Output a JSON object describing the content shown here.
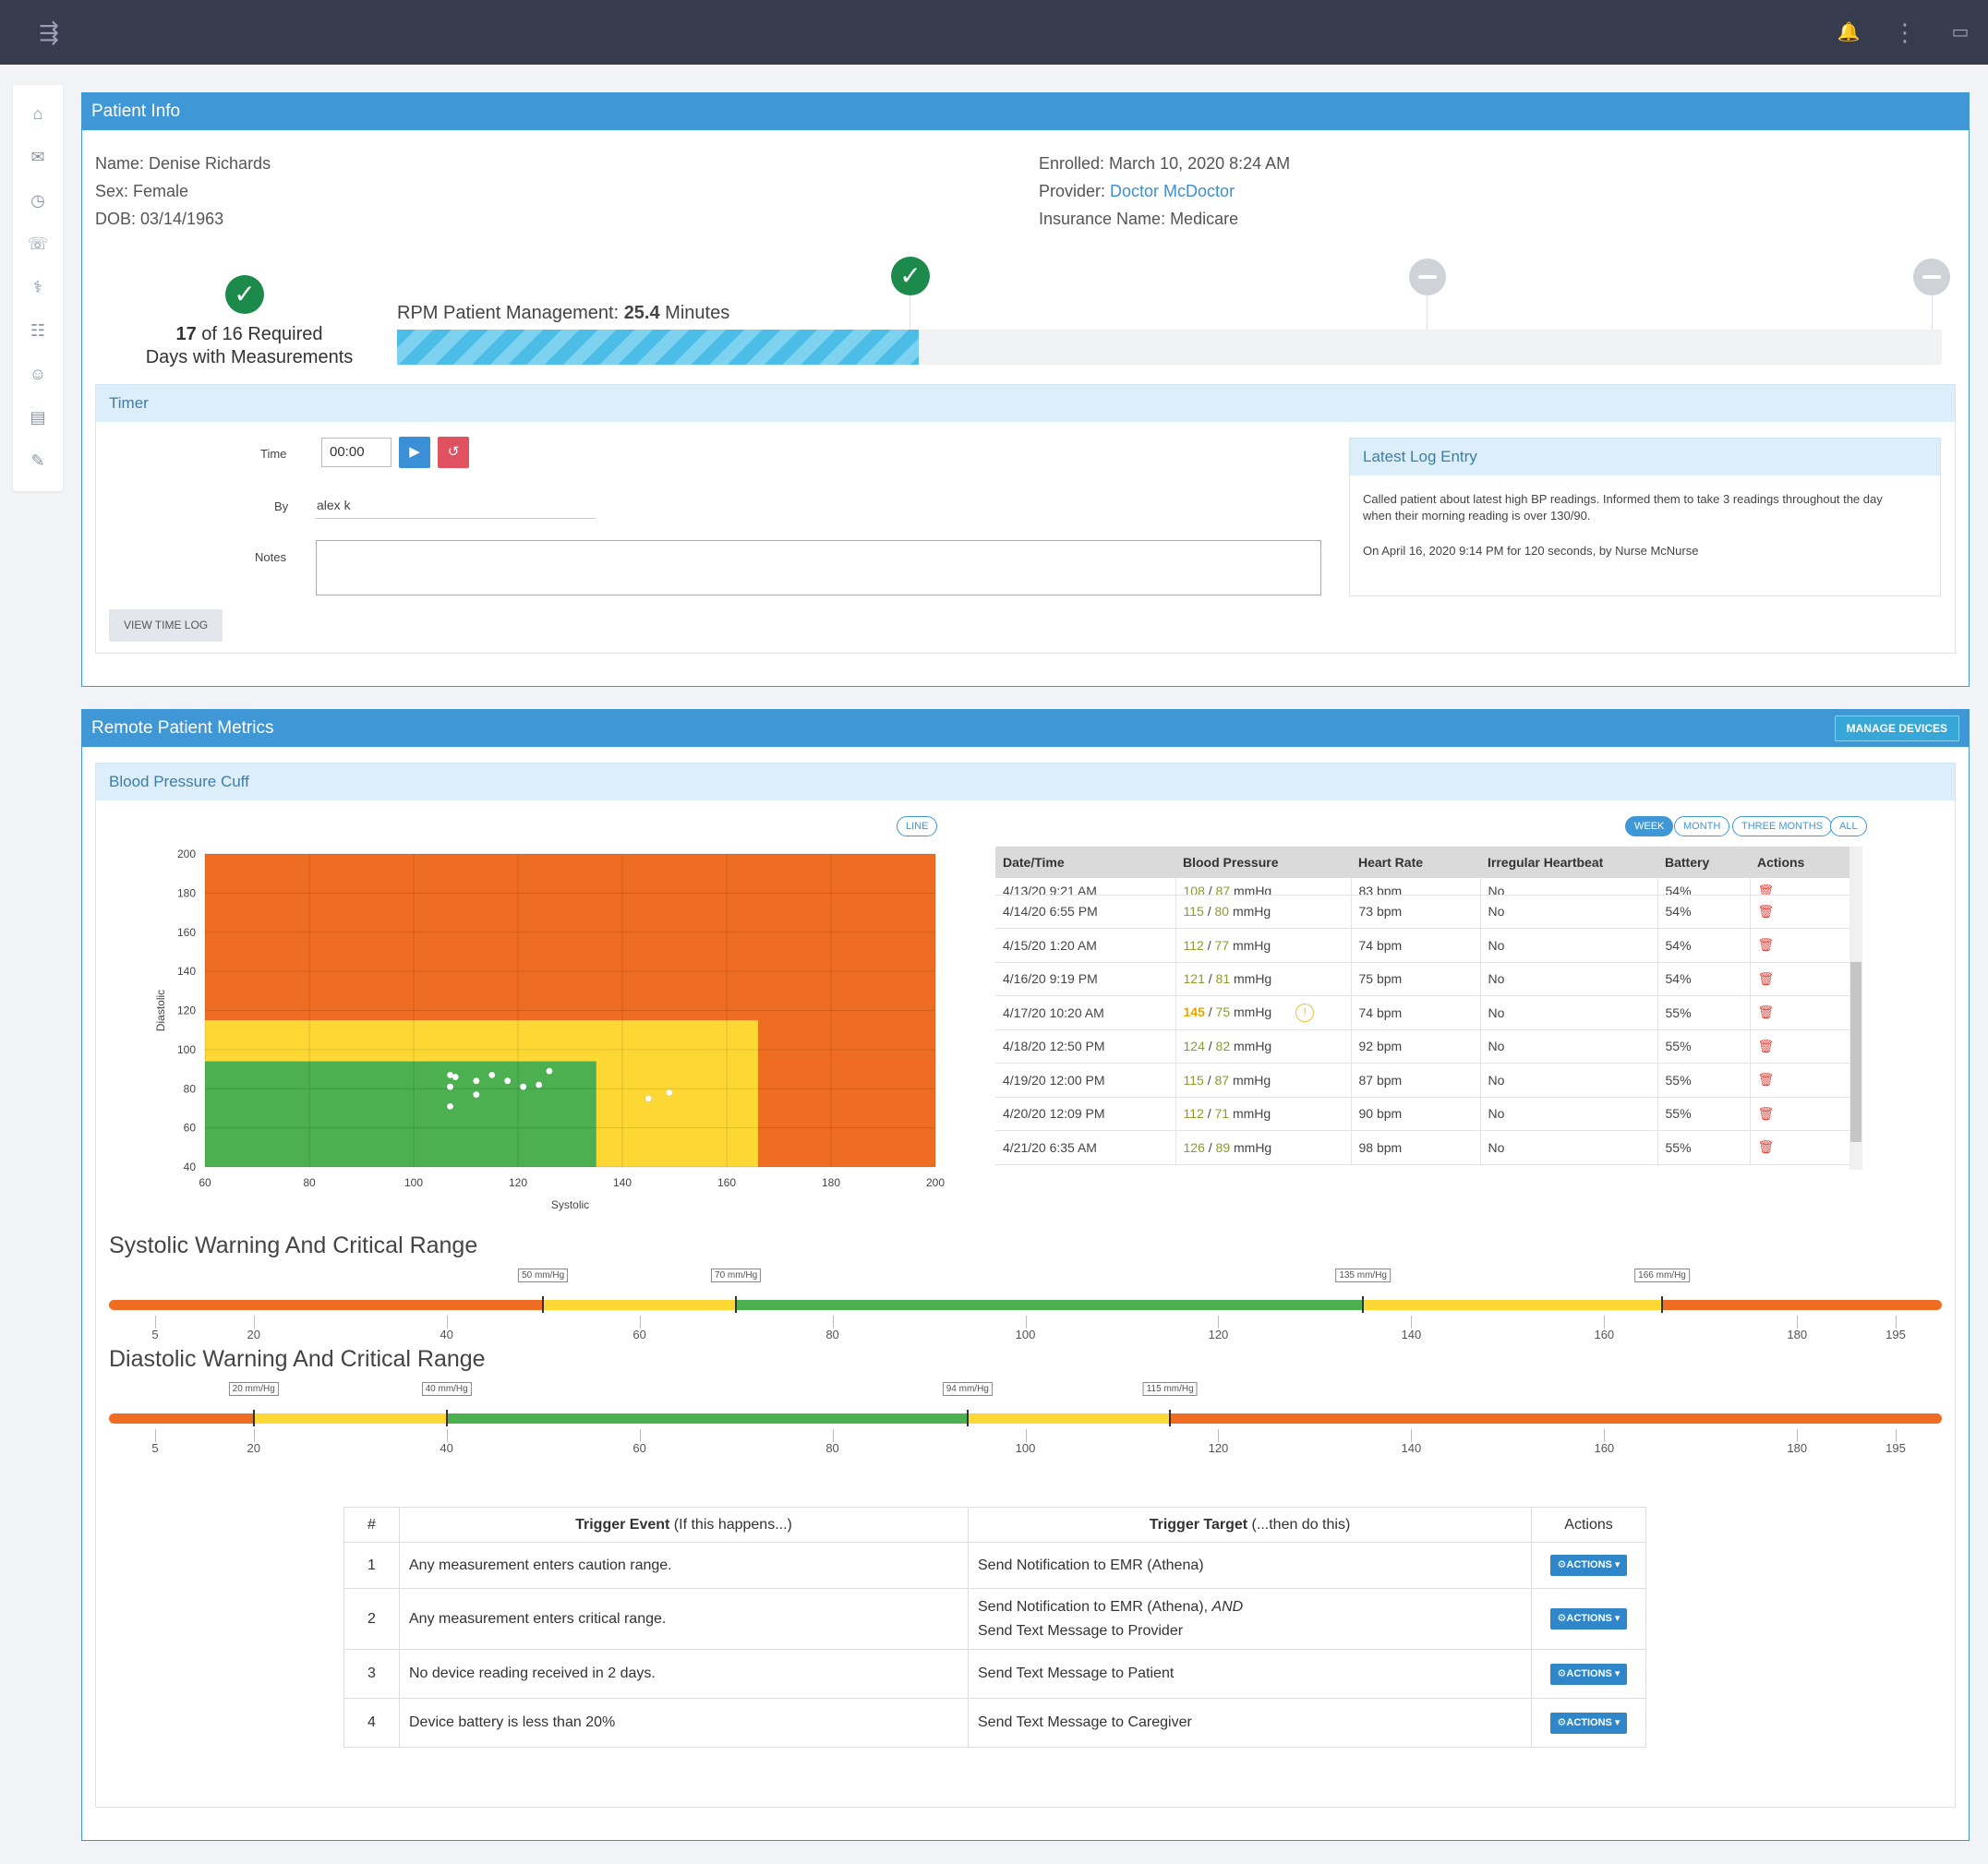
{
  "topbar": {
    "menu_icon": "⇶",
    "bell_icon": "🔔",
    "dots_icon": "⋮",
    "chat_icon": "▭"
  },
  "sidebar": {
    "items": [
      {
        "name": "home-icon",
        "glyph": "⌂"
      },
      {
        "name": "inbox-icon",
        "glyph": "✉"
      },
      {
        "name": "clock-icon",
        "glyph": "◷"
      },
      {
        "name": "message-icon",
        "glyph": "☏"
      },
      {
        "name": "stethoscope-icon",
        "glyph": "⚕"
      },
      {
        "name": "group-icon",
        "glyph": "☷"
      },
      {
        "name": "user-icon",
        "glyph": "☺"
      },
      {
        "name": "document-icon",
        "glyph": "▤"
      },
      {
        "name": "wrench-icon",
        "glyph": "✎"
      }
    ]
  },
  "patient_info": {
    "header": "Patient Info",
    "name": "Name: Denise Richards",
    "sex": "Sex: Female",
    "dob": "DOB: 03/14/1963",
    "enrolled": "Enrolled: March 10, 2020 8:24 AM",
    "provider_label": "Provider: ",
    "provider_name": "Doctor McDoctor",
    "insurance": "Insurance Name: Medicare",
    "days_count": "17",
    "days_line1": " of 16 Required",
    "days_line2": "Days with Measurements",
    "rpm_label": "RPM Patient Management: ",
    "rpm_value": "25.4",
    "rpm_unit": " Minutes",
    "rpm_progress_pct": 33.8
  },
  "timer": {
    "header": "Timer",
    "time_label": "Time",
    "time_value": "00:00",
    "play_icon": "▶",
    "reset_icon": "↺",
    "by_label": "By",
    "by_value": "alex k",
    "notes_label": "Notes",
    "notes_value": "",
    "view_log_button": "VIEW TIME LOG"
  },
  "latest_log": {
    "header": "Latest Log Entry",
    "text_line1": "Called patient about latest high BP readings. Informed them to take 3 readings throughout the day",
    "text_line2": "when their morning reading is over 130/90.",
    "meta": "On April 16, 2020 9:14 PM for 120 seconds, by Nurse McNurse"
  },
  "metrics": {
    "header": "Remote Patient Metrics",
    "manage_devices": "MANAGE DEVICES",
    "device": "Blood Pressure Cuff",
    "line_button": "LINE",
    "period_buttons": [
      "WEEK",
      "MONTH",
      "THREE MONTHS",
      "ALL"
    ],
    "table": {
      "headers": [
        "Date/Time",
        "Blood Pressure",
        "Heart Rate",
        "Irregular Heartbeat",
        "Battery",
        "Actions"
      ],
      "partial_row": {
        "date": "4/13/20 9:21 AM",
        "sys": "108",
        "dia": "87",
        "unit": "mmHg",
        "hr": "83 bpm",
        "irr": "No",
        "bat": "54%"
      },
      "rows": [
        {
          "date": "4/14/20 6:55 PM",
          "sys": "115",
          "dia": "80",
          "unit": "mmHg",
          "hr": "73 bpm",
          "irr": "No",
          "bat": "54%",
          "warn": false
        },
        {
          "date": "4/15/20 1:20 AM",
          "sys": "112",
          "dia": "77",
          "unit": "mmHg",
          "hr": "74 bpm",
          "irr": "No",
          "bat": "54%",
          "warn": false
        },
        {
          "date": "4/16/20 9:19 PM",
          "sys": "121",
          "dia": "81",
          "unit": "mmHg",
          "hr": "75 bpm",
          "irr": "No",
          "bat": "54%",
          "warn": false
        },
        {
          "date": "4/17/20 10:20 AM",
          "sys": "145",
          "dia": "75",
          "unit": "mmHg",
          "hr": "74 bpm",
          "irr": "No",
          "bat": "55%",
          "warn": true
        },
        {
          "date": "4/18/20 12:50 PM",
          "sys": "124",
          "dia": "82",
          "unit": "mmHg",
          "hr": "92 bpm",
          "irr": "No",
          "bat": "55%",
          "warn": false
        },
        {
          "date": "4/19/20 12:00 PM",
          "sys": "115",
          "dia": "87",
          "unit": "mmHg",
          "hr": "87 bpm",
          "irr": "No",
          "bat": "55%",
          "warn": false
        },
        {
          "date": "4/20/20 12:09 PM",
          "sys": "112",
          "dia": "71",
          "unit": "mmHg",
          "hr": "90 bpm",
          "irr": "No",
          "bat": "55%",
          "warn": false
        },
        {
          "date": "4/21/20 6:35 AM",
          "sys": "126",
          "dia": "89",
          "unit": "mmHg",
          "hr": "98 bpm",
          "irr": "No",
          "bat": "55%",
          "warn": false
        }
      ],
      "trash_icon": "🗑",
      "warn_icon": "!"
    }
  },
  "chart_data": {
    "type": "scatter",
    "title": "",
    "xlabel": "Systolic",
    "ylabel": "Diastolic",
    "xlim": [
      60,
      200
    ],
    "ylim": [
      40,
      200
    ],
    "xticks": [
      60,
      80,
      100,
      120,
      140,
      160,
      180,
      200
    ],
    "yticks": [
      40,
      60,
      80,
      100,
      120,
      140,
      160,
      180,
      200
    ],
    "zones": [
      {
        "name": "critical",
        "color": "#ee6d22",
        "x": [
          60,
          200
        ],
        "y": [
          40,
          200
        ]
      },
      {
        "name": "warning",
        "color": "#fdd835",
        "x": [
          60,
          166
        ],
        "y": [
          40,
          115
        ]
      },
      {
        "name": "normal",
        "color": "#4caf50",
        "x": [
          60,
          135
        ],
        "y": [
          40,
          94
        ]
      }
    ],
    "points": [
      {
        "x": 107,
        "y": 87
      },
      {
        "x": 108,
        "y": 86
      },
      {
        "x": 107,
        "y": 81
      },
      {
        "x": 107,
        "y": 71
      },
      {
        "x": 112,
        "y": 84
      },
      {
        "x": 112,
        "y": 77
      },
      {
        "x": 115,
        "y": 87
      },
      {
        "x": 118,
        "y": 84
      },
      {
        "x": 121,
        "y": 81
      },
      {
        "x": 124,
        "y": 82
      },
      {
        "x": 126,
        "y": 89
      },
      {
        "x": 145,
        "y": 75
      },
      {
        "x": 149,
        "y": 78
      }
    ]
  },
  "systolic_range": {
    "title": "Systolic Warning And Critical Range",
    "min": 5,
    "max": 195,
    "ticks": [
      5,
      20,
      40,
      60,
      80,
      100,
      120,
      140,
      160,
      180,
      195
    ],
    "markers": [
      {
        "value": 50,
        "label": "50 mm/Hg"
      },
      {
        "value": 70,
        "label": "70 mm/Hg"
      },
      {
        "value": 135,
        "label": "135 mm/Hg"
      },
      {
        "value": 166,
        "label": "166 mm/Hg"
      }
    ],
    "segments": [
      {
        "to": 50,
        "color": "#ee6d22"
      },
      {
        "to": 70,
        "color": "#fdd835"
      },
      {
        "to": 135,
        "color": "#4caf50"
      },
      {
        "to": 166,
        "color": "#fdd835"
      },
      {
        "to": 195,
        "color": "#ee6d22"
      }
    ]
  },
  "diastolic_range": {
    "title": "Diastolic Warning And Critical Range",
    "min": 5,
    "max": 195,
    "ticks": [
      5,
      20,
      40,
      60,
      80,
      100,
      120,
      140,
      160,
      180,
      195
    ],
    "markers": [
      {
        "value": 20,
        "label": "20 mm/Hg"
      },
      {
        "value": 40,
        "label": "40 mm/Hg"
      },
      {
        "value": 94,
        "label": "94 mm/Hg"
      },
      {
        "value": 115,
        "label": "115 mm/Hg"
      }
    ],
    "segments": [
      {
        "to": 20,
        "color": "#ee6d22"
      },
      {
        "to": 40,
        "color": "#fdd835"
      },
      {
        "to": 94,
        "color": "#4caf50"
      },
      {
        "to": 115,
        "color": "#fdd835"
      },
      {
        "to": 195,
        "color": "#ee6d22"
      }
    ]
  },
  "triggers": {
    "headers": {
      "num": "#",
      "event_bold": "Trigger Event",
      "event_rest": " (If this happens...)",
      "target_bold": "Trigger Target",
      "target_rest": " (...then do this)",
      "actions": "Actions"
    },
    "action_button": "⚙ACTIONS ▾",
    "rows": [
      {
        "num": "1",
        "event": "Any measurement enters caution range.",
        "target1": "Send Notification to EMR (Athena)",
        "target_and": "",
        "target2": ""
      },
      {
        "num": "2",
        "event": "Any measurement enters critical range.",
        "target1": "Send Notification to EMR (Athena), ",
        "target_and": "AND",
        "target2": "Send Text Message to Provider"
      },
      {
        "num": "3",
        "event": "No device reading received in 2 days.",
        "target1": "Send Text Message to Patient",
        "target_and": "",
        "target2": ""
      },
      {
        "num": "4",
        "event": "Device battery is less than 20%",
        "target1": "Send Text Message to Caregiver",
        "target_and": "",
        "target2": ""
      }
    ]
  }
}
